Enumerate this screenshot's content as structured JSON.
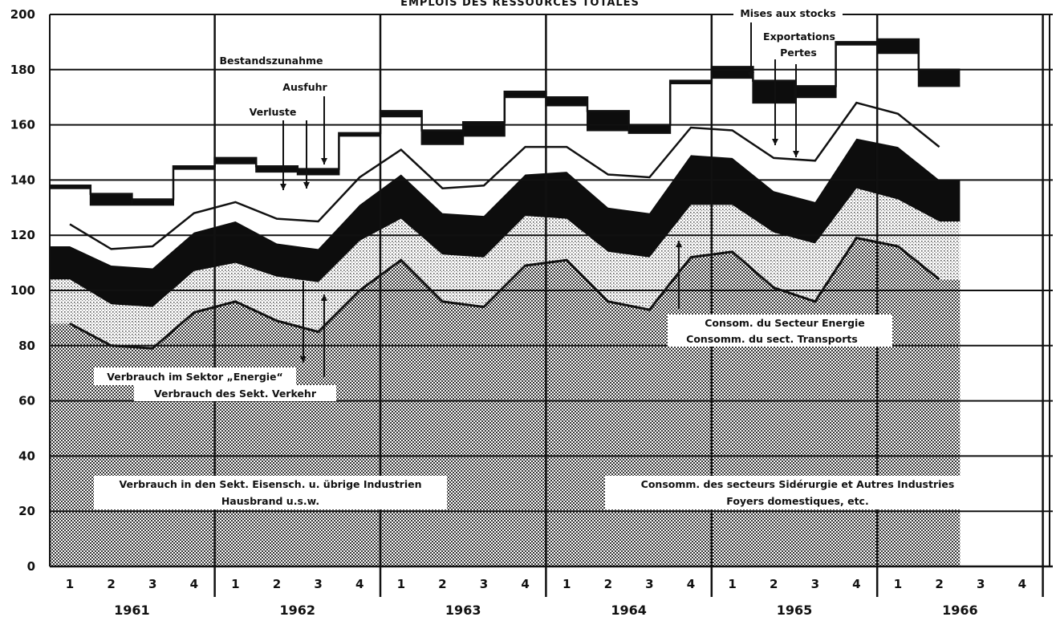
{
  "chart_data": {
    "type": "area",
    "title": "EMPLOIS DES RESSOURCES TOTALES",
    "xlabel": "",
    "ylabel": "",
    "ylim": [
      0,
      200
    ],
    "yticks": [
      0,
      20,
      40,
      60,
      80,
      100,
      120,
      140,
      160,
      180,
      200
    ],
    "grid": true,
    "quarter_labels": [
      "1",
      "2",
      "3",
      "4",
      "1",
      "2",
      "3",
      "4",
      "1",
      "2",
      "3",
      "4",
      "1",
      "2",
      "3",
      "4",
      "1",
      "2",
      "3",
      "4",
      "1",
      "2",
      "3",
      "4"
    ],
    "years": [
      "1961",
      "1962",
      "1963",
      "1964",
      "1965",
      "1966"
    ],
    "x": [
      "1961-Q1",
      "1961-Q2",
      "1961-Q3",
      "1961-Q4",
      "1962-Q1",
      "1962-Q2",
      "1962-Q3",
      "1962-Q4",
      "1963-Q1",
      "1963-Q2",
      "1963-Q3",
      "1963-Q4",
      "1964-Q1",
      "1964-Q2",
      "1964-Q3",
      "1964-Q4",
      "1965-Q1",
      "1965-Q2",
      "1965-Q3",
      "1965-Q4",
      "1966-Q1",
      "1966-Q2"
    ],
    "series": [
      {
        "name": "Verbrauch in den Sekt. Eisensch. u. übrige Industrien / Hausbrand u.s.w. — Consomm. des secteurs Sidérurgie et Autres Industries / Foyers domestiques, etc.",
        "values": [
          88,
          80,
          79,
          92,
          96,
          89,
          85,
          100,
          111,
          96,
          94,
          109,
          111,
          96,
          93,
          112,
          114,
          101,
          96,
          119,
          116,
          104
        ]
      },
      {
        "name": "Verbrauch des Sekt. Verkehr — Consomm. du sect. Transports",
        "values": [
          104,
          95,
          94,
          107,
          110,
          105,
          103,
          118,
          126,
          113,
          112,
          127,
          126,
          114,
          112,
          131,
          131,
          121,
          117,
          137,
          133,
          125
        ]
      },
      {
        "name": "Verbrauch im Sektor „Energie“ — Consom. du Secteur Energie",
        "values": [
          116,
          109,
          108,
          121,
          125,
          117,
          115,
          131,
          142,
          128,
          127,
          142,
          143,
          130,
          128,
          149,
          148,
          136,
          132,
          155,
          152,
          140
        ]
      },
      {
        "name": "Verluste — Pertes",
        "values": [
          124,
          115,
          116,
          128,
          132,
          126,
          125,
          141,
          151,
          137,
          138,
          152,
          152,
          142,
          141,
          159,
          158,
          148,
          147,
          168,
          164,
          152
        ]
      },
      {
        "name": "Ausfuhr — Exportations",
        "values": [
          137,
          131,
          131,
          144,
          146,
          143,
          142,
          156,
          163,
          153,
          156,
          170,
          167,
          158,
          157,
          175,
          177,
          168,
          170,
          189,
          186,
          174
        ]
      },
      {
        "name": "Bestandszunahme — Mises aux stocks",
        "values": [
          138,
          135,
          133,
          145,
          148,
          145,
          144,
          157,
          165,
          158,
          161,
          172,
          170,
          165,
          160,
          176,
          181,
          176,
          174,
          190,
          191,
          180
        ]
      }
    ],
    "annotations_de": [
      "Bestandszunahme",
      "Ausfuhr",
      "Verluste",
      "Verbrauch im Sektor „Energie“",
      "Verbrauch des Sekt. Verkehr",
      "Verbrauch in den Sekt. Eisensch. u. übrige Industrien",
      "Hausbrand u.s.w."
    ],
    "annotations_fr": [
      "Mises aux stocks",
      "Exportations",
      "Pertes",
      "Consom. du Secteur Energie",
      "Consomm. du sect. Transports",
      "Consomm. des secteurs Sidérurgie et Autres Industries",
      "Foyers domestiques, etc."
    ]
  },
  "colors": {
    "ink": "#111111",
    "background": "#ffffff",
    "bottom_fill": "#9a9a9a",
    "band_fill": "#d6d6d6",
    "dark_band": "#0d0d0d"
  }
}
